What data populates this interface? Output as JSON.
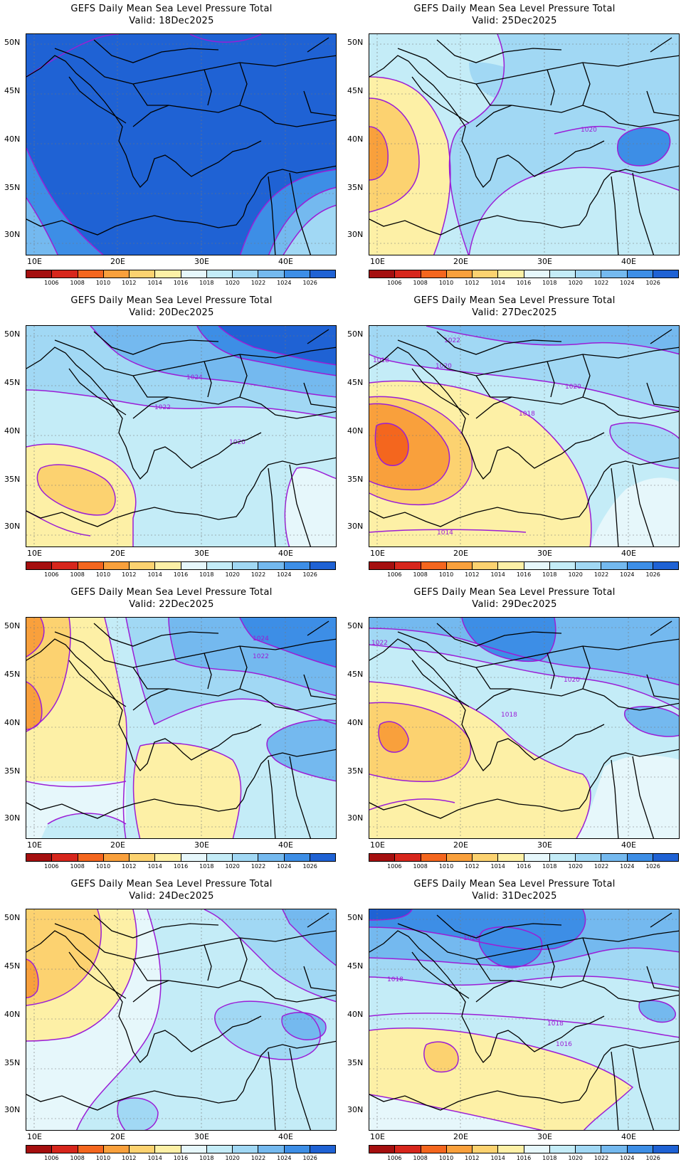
{
  "legend": {
    "levels": [
      "1006",
      "1008",
      "1010",
      "1012",
      "1014",
      "1016",
      "1018",
      "1020",
      "1022",
      "1024",
      "1026"
    ],
    "colors": [
      "#a50f0f",
      "#d7261c",
      "#f4661e",
      "#f9a03c",
      "#fcd270",
      "#fdf0a6",
      "#e6f7fb",
      "#c4ecf7",
      "#a1d8f4",
      "#74b9ef",
      "#3d8ee6",
      "#1f62d4"
    ]
  },
  "axes": {
    "lat_labels": [
      "50N",
      "45N",
      "40N",
      "35N",
      "30N"
    ],
    "lon_labels": [
      "10E",
      "20E",
      "30E",
      "40E"
    ]
  },
  "panels": [
    {
      "title": "GEFS Daily Mean Sea Level Pressure Total",
      "valid": "Valid: 18Dec2025",
      "contour_labels": []
    },
    {
      "title": "GEFS Daily Mean Sea Level Pressure Total",
      "valid": "Valid: 25Dec2025",
      "contour_labels": [
        "1020"
      ]
    },
    {
      "title": "GEFS Daily Mean Sea Level Pressure Total",
      "valid": "Valid: 20Dec2025",
      "contour_labels": [
        "1024",
        "1022",
        "1020"
      ]
    },
    {
      "title": "GEFS Daily Mean Sea Level Pressure Total",
      "valid": "Valid: 27Dec2025",
      "contour_labels": [
        "1022",
        "1018",
        "1020",
        "1020",
        "1018",
        "1014"
      ]
    },
    {
      "title": "GEFS Daily Mean Sea Level Pressure Total",
      "valid": "Valid: 22Dec2025",
      "contour_labels": [
        "1024",
        "1022"
      ]
    },
    {
      "title": "GEFS Daily Mean Sea Level Pressure Total",
      "valid": "Valid: 29Dec2025",
      "contour_labels": [
        "1022",
        "1020",
        "1018"
      ]
    },
    {
      "title": "GEFS Daily Mean Sea Level Pressure Total",
      "valid": "Valid: 24Dec2025",
      "contour_labels": []
    },
    {
      "title": "GEFS Daily Mean Sea Level Pressure Total",
      "valid": "Valid: 31Dec2025",
      "contour_labels": [
        "1022",
        "1018",
        "1018",
        "1016"
      ]
    }
  ]
}
